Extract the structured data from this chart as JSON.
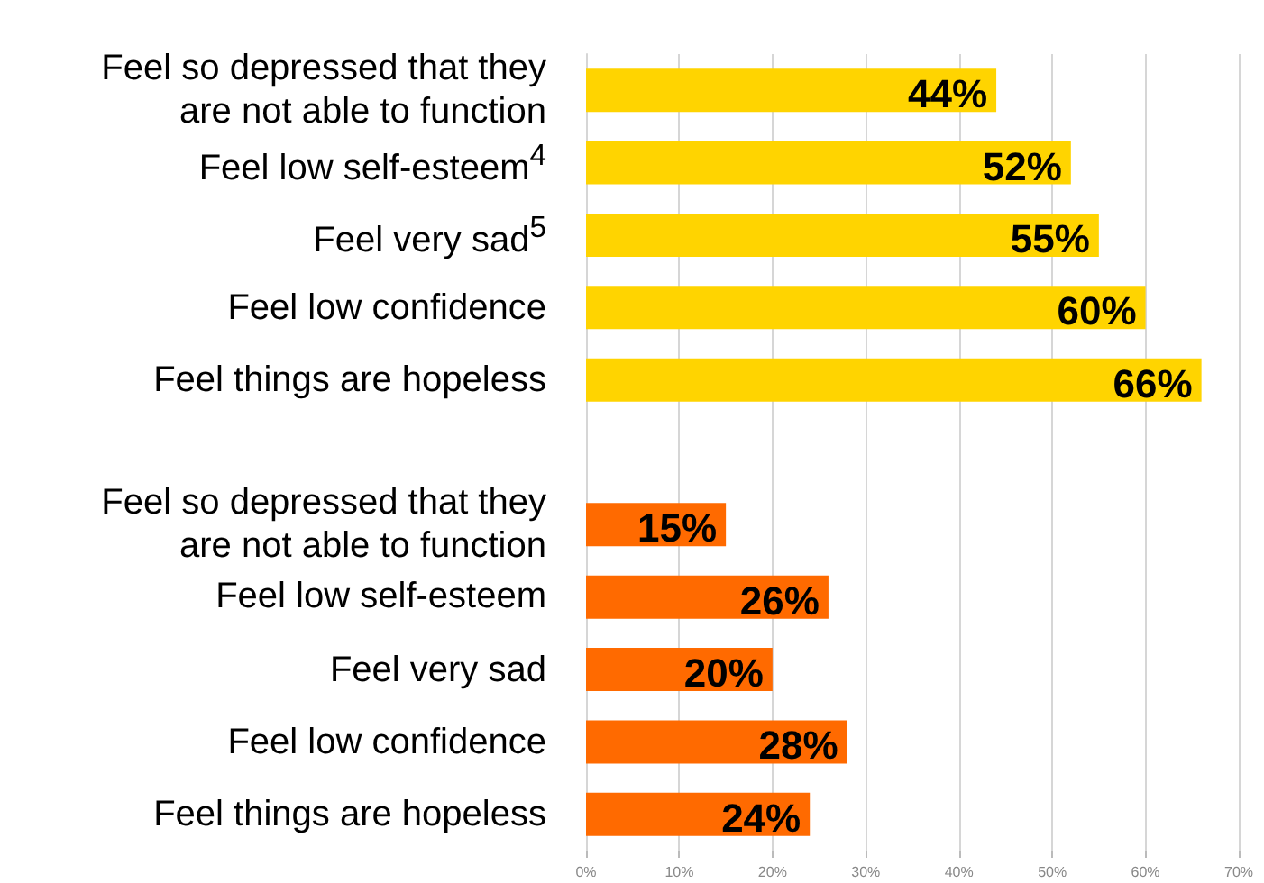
{
  "chart_data": {
    "type": "bar",
    "orientation": "horizontal",
    "categories": [
      "Feel so depressed that they are not able to function",
      "Feel low self-esteem$^{4}$",
      "Feel very sad$^{5}$",
      "Feel low confidence",
      "Feel things are hopeless",
      null,
      "Feel so depressed that they are not able to function",
      "Feel low self-esteem",
      "Feel very sad",
      "Feel low confidence",
      "Feel things are hopeless"
    ],
    "values": [
      44,
      52,
      55,
      60,
      66,
      null,
      15,
      26,
      20,
      28,
      24
    ],
    "value_labels": [
      "44%",
      "52%",
      "55%",
      "60%",
      "66%",
      null,
      "15%",
      "26%",
      "20%",
      "28%",
      "24%"
    ],
    "colors": [
      "#ffd400",
      "#ffd400",
      "#ffd400",
      "#ffd400",
      "#ffd400",
      null,
      "#ff6a00",
      "#ff6a00",
      "#ff6a00",
      "#ff6a00",
      "#ff6a00"
    ],
    "xlim": [
      0,
      70
    ],
    "xticks": [
      {
        "value": 0,
        "label": "0%"
      },
      {
        "value": 10,
        "label": "10%"
      },
      {
        "value": 20,
        "label": "20%"
      },
      {
        "value": 30,
        "label": "30%"
      },
      {
        "value": 40,
        "label": "40%"
      },
      {
        "value": 50,
        "label": "50%"
      },
      {
        "value": 60,
        "label": "60%"
      },
      {
        "value": 70,
        "label": "70%"
      }
    ],
    "grid": "x"
  }
}
